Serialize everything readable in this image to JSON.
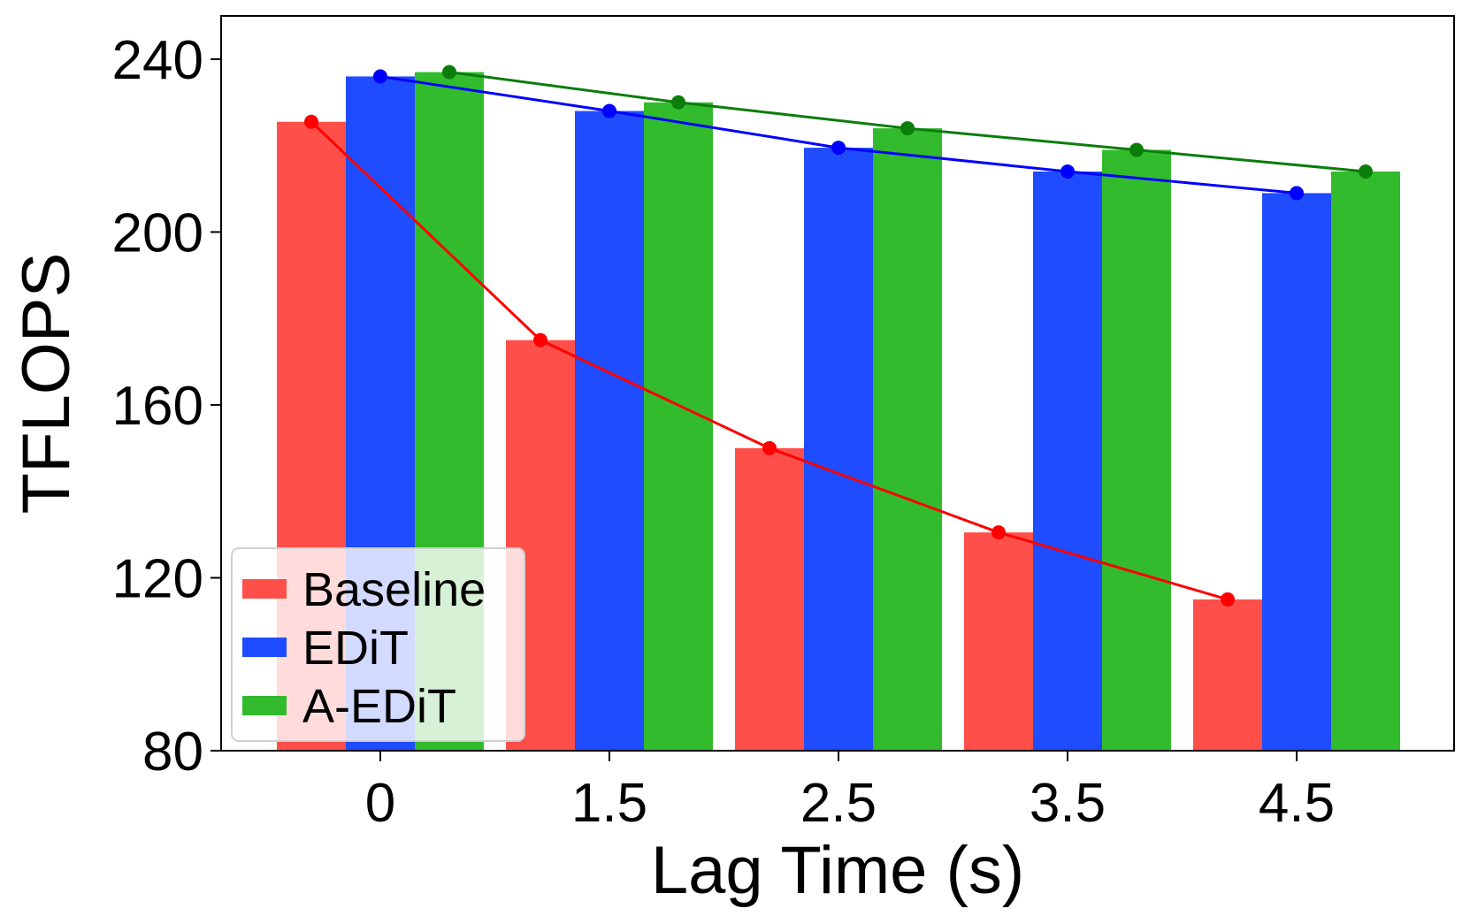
{
  "chart_data": {
    "type": "bar",
    "title": "",
    "xlabel": "Lag Time (s)",
    "ylabel": "TFLOPS",
    "categories": [
      "0",
      "1.5",
      "2.5",
      "3.5",
      "4.5"
    ],
    "ylim": [
      80,
      250
    ],
    "yticks": [
      80,
      120,
      160,
      200,
      240
    ],
    "grid": false,
    "legend_position": "lower-left",
    "series": [
      {
        "name": "Baseline",
        "bar_color": "#ff4f4a",
        "line_color": "#ff0000",
        "values": [
          225.5,
          175,
          150,
          130.5,
          115
        ]
      },
      {
        "name": "EDiT",
        "bar_color": "#1f4cff",
        "line_color": "#0000ff",
        "values": [
          236,
          228,
          219.5,
          214,
          209
        ]
      },
      {
        "name": "A-EDiT",
        "bar_color": "#33bb2e",
        "line_color": "#0b7d0b",
        "values": [
          237,
          230,
          224,
          219,
          214
        ]
      }
    ],
    "overlay": "line with markers through each bar top"
  }
}
